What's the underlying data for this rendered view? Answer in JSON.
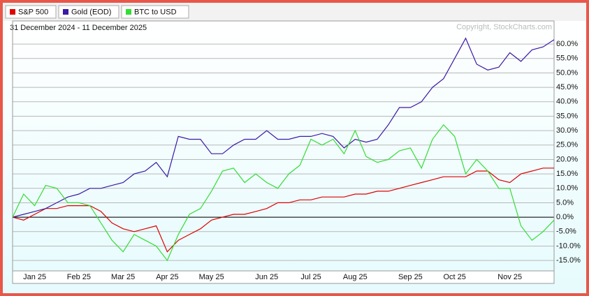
{
  "chart_data": {
    "type": "line",
    "subtitle": "31 December 2024 - 11 December 2025",
    "annotation": "Copyright, StockCharts.com",
    "categories": [
      null,
      null,
      "Jan 25",
      null,
      null,
      null,
      "Feb 25",
      null,
      null,
      null,
      "Mar 25",
      null,
      null,
      null,
      "Apr 25",
      null,
      null,
      null,
      "May 25",
      null,
      null,
      null,
      null,
      "Jun 25",
      null,
      null,
      null,
      "Jul 25",
      null,
      null,
      null,
      "Aug 25",
      null,
      null,
      null,
      null,
      "Sep 25",
      null,
      null,
      null,
      "Oct 25",
      null,
      null,
      null,
      null,
      "Nov 25",
      null,
      null,
      null,
      null
    ],
    "series": [
      {
        "name": "S&P 500",
        "color": "#e00000",
        "values": [
          0,
          -1,
          1,
          3,
          3,
          4,
          4,
          4,
          2,
          -2,
          -4,
          -5,
          -4,
          -3,
          -12,
          -8,
          -6,
          -4,
          -1,
          0,
          1,
          1,
          2,
          3,
          5,
          5,
          6,
          6,
          7,
          7,
          7,
          8,
          8,
          9,
          9,
          10,
          11,
          12,
          13,
          14,
          14,
          14,
          16,
          16,
          13,
          12,
          15,
          16,
          17,
          17
        ]
      },
      {
        "name": "Gold (EOD)",
        "color": "#3a1aa6",
        "values": [
          0,
          1,
          2,
          3,
          5,
          7,
          8,
          10,
          10,
          11,
          12,
          15,
          16,
          19,
          14,
          28,
          27,
          27,
          22,
          22,
          25,
          27,
          27,
          30,
          27,
          27,
          28,
          28,
          29,
          28,
          24,
          27,
          26,
          27,
          32,
          38,
          38,
          40,
          45,
          48,
          55,
          62,
          53,
          51,
          52,
          57,
          54,
          58,
          59,
          61.5
        ]
      },
      {
        "name": "BTC to USD",
        "color": "#33dd33",
        "values": [
          0,
          8,
          4,
          11,
          10,
          5,
          5,
          4,
          -2,
          -8,
          -12,
          -6,
          -8,
          -10,
          -15,
          -6,
          1,
          3,
          9,
          16,
          17,
          12,
          15,
          12,
          10,
          15,
          18,
          27,
          25,
          27,
          22,
          30,
          21,
          19,
          20,
          23,
          24,
          17,
          27,
          32,
          28,
          15,
          20,
          16,
          10,
          10,
          -3,
          -8,
          -5,
          -1
        ]
      }
    ],
    "ylim": [
      -18.6,
      66.8
    ],
    "yticks": [
      {
        "value": -15,
        "label": "-15.0%"
      },
      {
        "value": -10,
        "label": "-10.0%"
      },
      {
        "value": -5,
        "label": "-5.0%"
      },
      {
        "value": 0,
        "label": "0.0%"
      },
      {
        "value": 5,
        "label": "5.0%"
      },
      {
        "value": 10,
        "label": "10.0%"
      },
      {
        "value": 15,
        "label": "15.0%"
      },
      {
        "value": 20,
        "label": "20.0%"
      },
      {
        "value": 25,
        "label": "25.0%"
      },
      {
        "value": 30,
        "label": "30.0%"
      },
      {
        "value": 35,
        "label": "35.0%"
      },
      {
        "value": 40,
        "label": "40.0%"
      },
      {
        "value": 45,
        "label": "45.0%"
      },
      {
        "value": 50,
        "label": "50.0%"
      },
      {
        "value": 55,
        "label": "55.0%"
      },
      {
        "value": 60,
        "label": "60.0%"
      }
    ],
    "grid": true,
    "legend": "top-left"
  }
}
